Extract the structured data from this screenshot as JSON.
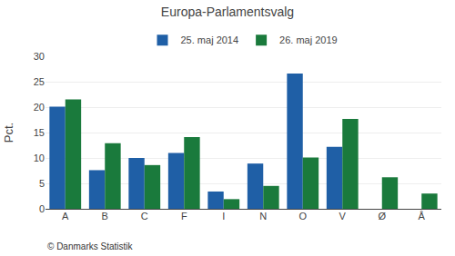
{
  "chart_data": {
    "type": "bar",
    "title": "Europa-Parlamentsvalg",
    "categories": [
      "A",
      "B",
      "C",
      "F",
      "I",
      "N",
      "O",
      "V",
      "Ø",
      "Å"
    ],
    "series": [
      {
        "name": "25. maj 2014",
        "color": "#1f5fa6",
        "values": [
          20.1,
          7.6,
          10.0,
          11.0,
          3.4,
          8.9,
          26.6,
          12.2,
          0.0,
          0.0
        ]
      },
      {
        "name": "26. maj 2019",
        "color": "#1a7a3c",
        "values": [
          21.5,
          12.9,
          8.6,
          14.1,
          1.9,
          4.5,
          10.1,
          17.7,
          6.2,
          3.0
        ]
      }
    ],
    "ylabel": "Pct.",
    "ylim": [
      0,
      30
    ],
    "yticks": [
      0,
      5,
      10,
      15,
      20,
      25,
      30
    ],
    "grid": true,
    "legend": "top",
    "annotations": [
      "© Danmarks Statistik"
    ]
  }
}
